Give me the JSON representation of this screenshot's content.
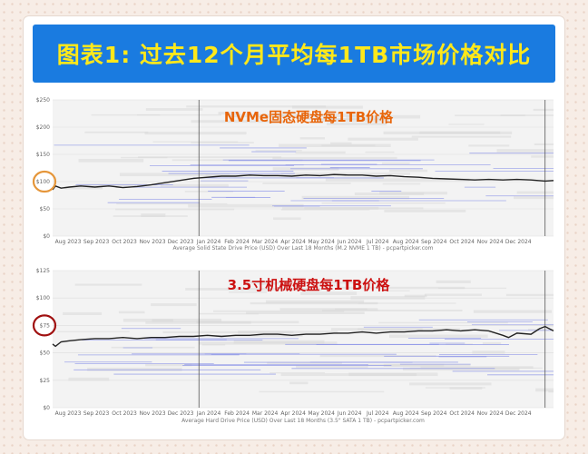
{
  "header": {
    "title": "图表1: 过去12个月平均每1TB市场价格对比"
  },
  "colors": {
    "title_bg": "#1a7be0",
    "title_text": "#ffe81a",
    "panel1_title": "#e8650a",
    "panel2_title": "#cc1111",
    "circle1": "#e5963a",
    "circle2": "#a01010",
    "avg_line": "#222222",
    "price_lines": "#8890e8"
  },
  "chart_data": [
    {
      "type": "line",
      "title": "NVMe固态硬盘每1TB价格",
      "footnote": "Average Solid State Drive Price (USD) Over Last 18 Months (M.2 NVME 1 TB) - pcpartpicker.com",
      "y_ticks": [
        "$0",
        "$50",
        "$100",
        "$150",
        "$200",
        "$250"
      ],
      "ylim": [
        0,
        250
      ],
      "x_ticks": [
        "Aug 2023",
        "Sep 2023",
        "Oct 2023",
        "Nov 2023",
        "Dec 2023",
        "Jan 2024",
        "Feb 2024",
        "Mar 2024",
        "Apr 2024",
        "May 2024",
        "Jun 2024",
        "Jul 2024",
        "Aug 2024",
        "Sep 2024",
        "Oct 2024",
        "Nov 2024",
        "Dec 2024"
      ],
      "xlim": [
        0,
        17.8
      ],
      "highlight_value": 100,
      "series": [
        {
          "x": [
            0,
            0.1,
            0.3,
            0.6,
            1,
            1.5,
            2,
            2.5,
            3,
            3.5,
            4,
            4.5,
            5,
            5.5,
            6,
            6.5,
            7,
            7.5,
            8,
            8.5,
            9,
            9.5,
            10,
            10.5,
            11,
            11.5,
            12,
            12.5,
            13,
            13.5,
            14,
            14.5,
            15,
            15.5,
            16,
            16.5,
            17,
            17.5,
            17.8
          ],
          "values": [
            85,
            92,
            88,
            90,
            92,
            90,
            92,
            89,
            91,
            94,
            98,
            102,
            106,
            108,
            110,
            110,
            112,
            111,
            111,
            110,
            112,
            111,
            113,
            112,
            112,
            110,
            111,
            109,
            108,
            106,
            105,
            104,
            103,
            104,
            103,
            104,
            103,
            101,
            102
          ]
        }
      ]
    },
    {
      "type": "line",
      "title": "3.5寸机械硬盘每1TB价格",
      "footnote": "Average Hard Drive Price (USD) Over Last 18 Months (3.5\" SATA 1 TB) - pcpartpicker.com",
      "y_ticks": [
        "$0",
        "$25",
        "$50",
        "$75",
        "$100",
        "$125"
      ],
      "ylim": [
        0,
        125
      ],
      "x_ticks": [
        "Aug 2023",
        "Sep 2023",
        "Oct 2023",
        "Nov 2023",
        "Dec 2023",
        "Jan 2024",
        "Feb 2024",
        "Mar 2024",
        "Apr 2024",
        "May 2024",
        "Jun 2024",
        "Jul 2024",
        "Aug 2024",
        "Sep 2024",
        "Oct 2024",
        "Nov 2024",
        "Dec 2024"
      ],
      "xlim": [
        0,
        17.8
      ],
      "highlight_value": 75,
      "series": [
        {
          "x": [
            0,
            0.1,
            0.3,
            0.6,
            1,
            1.5,
            2,
            2.5,
            3,
            3.5,
            4,
            4.5,
            5,
            5.5,
            6,
            6.5,
            7,
            7.5,
            8,
            8.5,
            9,
            9.5,
            10,
            10.5,
            11,
            11.5,
            12,
            12.5,
            13,
            13.5,
            14,
            14.5,
            15,
            15.5,
            16,
            16.2,
            16.5,
            17,
            17.3,
            17.5,
            17.8
          ],
          "values": [
            58,
            56,
            60,
            61,
            62,
            63,
            63,
            64,
            63,
            64,
            64,
            65,
            65,
            66,
            65,
            66,
            66,
            67,
            67,
            66,
            67,
            67,
            68,
            68,
            69,
            68,
            69,
            69,
            70,
            70,
            71,
            70,
            71,
            70,
            66,
            64,
            68,
            67,
            72,
            74,
            70
          ]
        }
      ]
    }
  ]
}
